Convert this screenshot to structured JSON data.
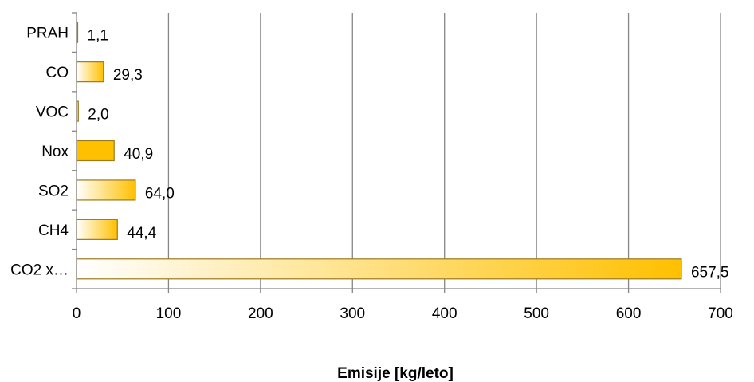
{
  "chart_data": {
    "type": "bar",
    "orientation": "horizontal",
    "categories": [
      "PRAH",
      "CO",
      "VOC",
      "Nox",
      "SO2",
      "CH4",
      "CO2 x…"
    ],
    "values": [
      1.1,
      29.3,
      2.0,
      40.9,
      64.0,
      44.4,
      657.5
    ],
    "value_labels": [
      "1,1",
      "29,3",
      "2,0",
      "40,9",
      "64,0",
      "44,4",
      "657,5"
    ],
    "bar_fill": [
      "gradient",
      "gradient",
      "gradient",
      "solid",
      "gradient",
      "gradient",
      "gradient"
    ],
    "xlabel": "Emisije [kg/leto]",
    "xlim": [
      0,
      700
    ],
    "x_ticks": [
      0,
      100,
      200,
      300,
      400,
      500,
      600,
      700
    ],
    "x_tick_labels": [
      "0",
      "100",
      "200",
      "300",
      "400",
      "500",
      "600",
      "700"
    ],
    "grid": "vertical",
    "legend": "none",
    "colors": {
      "bar": "#FFC000",
      "bar_edge": "#9C7A1E",
      "grid": "#868686",
      "axis": "#868686"
    }
  }
}
